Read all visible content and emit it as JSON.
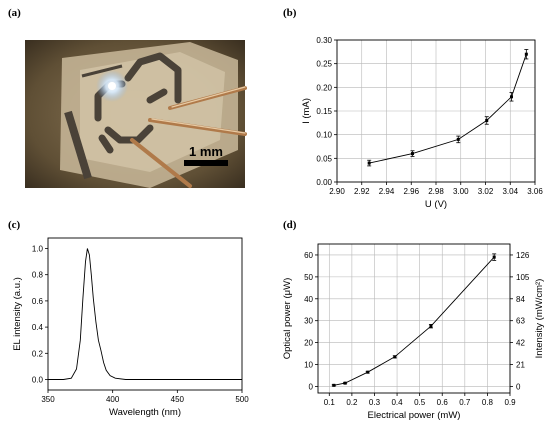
{
  "panels": {
    "a": "(a)",
    "b": "(b)",
    "c": "(c)",
    "d": "(d)"
  },
  "photo": {
    "scale_label": "1 mm",
    "colors": {
      "background": "#6b5a3e",
      "substrate": "#c9b89a",
      "electrode": "#4a4238",
      "glow": "#e8f4ff",
      "needle": "#b07a4a"
    }
  },
  "chart_data": [
    {
      "id": "b",
      "type": "line",
      "title": "",
      "xlabel": "U (V)",
      "ylabel": "I (mA)",
      "xlim": [
        2.9,
        3.06
      ],
      "ylim": [
        0.0,
        0.3
      ],
      "xticks": [
        "2.90",
        "2.92",
        "2.94",
        "2.96",
        "2.98",
        "3.00",
        "3.02",
        "3.04",
        "3.06"
      ],
      "yticks": [
        "0.00",
        "0.05",
        "0.10",
        "0.15",
        "0.20",
        "0.25",
        "0.30"
      ],
      "grid": true,
      "points": [
        {
          "x": 2.926,
          "y": 0.04,
          "err": 0.006
        },
        {
          "x": 2.961,
          "y": 0.06,
          "err": 0.006
        },
        {
          "x": 2.998,
          "y": 0.09,
          "err": 0.007
        },
        {
          "x": 3.021,
          "y": 0.13,
          "err": 0.008
        },
        {
          "x": 3.041,
          "y": 0.18,
          "err": 0.009
        },
        {
          "x": 3.053,
          "y": 0.27,
          "err": 0.01
        }
      ]
    },
    {
      "id": "c",
      "type": "line",
      "title": "",
      "xlabel": "Wavelength (nm)",
      "ylabel": "EL intensity (a.u.)",
      "xlim": [
        350,
        500
      ],
      "ylim": [
        -0.08,
        1.08
      ],
      "xticks": [
        "350",
        "400",
        "450",
        "500"
      ],
      "yticks": [
        "0.0",
        "0.2",
        "0.4",
        "0.6",
        "0.8",
        "1.0"
      ],
      "grid": false,
      "points": [
        {
          "x": 350,
          "y": 0.0
        },
        {
          "x": 362,
          "y": 0.0
        },
        {
          "x": 368,
          "y": 0.01
        },
        {
          "x": 372,
          "y": 0.08
        },
        {
          "x": 375,
          "y": 0.3
        },
        {
          "x": 377,
          "y": 0.62
        },
        {
          "x": 379,
          "y": 0.9
        },
        {
          "x": 380.5,
          "y": 1.0
        },
        {
          "x": 382,
          "y": 0.95
        },
        {
          "x": 383.5,
          "y": 0.8
        },
        {
          "x": 385,
          "y": 0.62
        },
        {
          "x": 387,
          "y": 0.44
        },
        {
          "x": 389,
          "y": 0.3
        },
        {
          "x": 391,
          "y": 0.22
        },
        {
          "x": 393,
          "y": 0.13
        },
        {
          "x": 395,
          "y": 0.07
        },
        {
          "x": 398,
          "y": 0.03
        },
        {
          "x": 402,
          "y": 0.01
        },
        {
          "x": 410,
          "y": 0.0
        },
        {
          "x": 430,
          "y": 0.0
        },
        {
          "x": 460,
          "y": 0.0
        },
        {
          "x": 500,
          "y": 0.0
        }
      ]
    },
    {
      "id": "d",
      "type": "line",
      "title": "",
      "xlabel": "Electrical power (mW)",
      "ylabel": "Optical power (μW)",
      "ylabel_right": "Intensity (mW/cm²)",
      "xlim": [
        0.05,
        0.9
      ],
      "ylim": [
        -3,
        65
      ],
      "ylim_right": [
        -6.3,
        136.5
      ],
      "xticks": [
        "0.1",
        "0.2",
        "0.3",
        "0.4",
        "0.5",
        "0.6",
        "0.7",
        "0.8",
        "0.9"
      ],
      "yticks": [
        "0",
        "10",
        "20",
        "30",
        "40",
        "50",
        "60"
      ],
      "yticks_right": [
        "0",
        "21",
        "42",
        "63",
        "84",
        "105",
        "126"
      ],
      "grid": true,
      "points": [
        {
          "x": 0.12,
          "y": 0.5,
          "err": 0.3
        },
        {
          "x": 0.17,
          "y": 1.5,
          "err": 0.3
        },
        {
          "x": 0.27,
          "y": 6.5,
          "err": 0.4
        },
        {
          "x": 0.39,
          "y": 13.5,
          "err": 0.5
        },
        {
          "x": 0.55,
          "y": 27.5,
          "err": 0.8
        },
        {
          "x": 0.83,
          "y": 59.0,
          "err": 1.5
        }
      ]
    }
  ]
}
